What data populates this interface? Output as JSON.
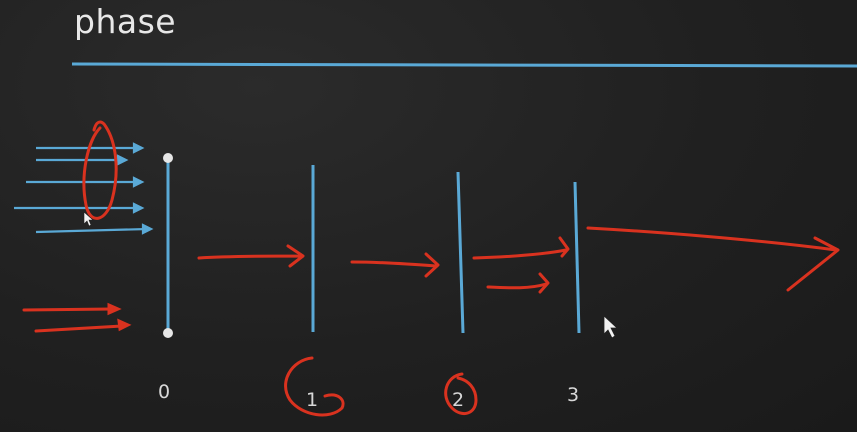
{
  "title": "phase",
  "stage_labels": [
    "0",
    "1",
    "2",
    "3"
  ],
  "colors": {
    "background": "#1f1f1f",
    "chalk_blue": "#5aa9d6",
    "marker_red": "#d9321f",
    "text": "#e8e8e8"
  },
  "icons": [
    "mouse-pointer-icon"
  ]
}
